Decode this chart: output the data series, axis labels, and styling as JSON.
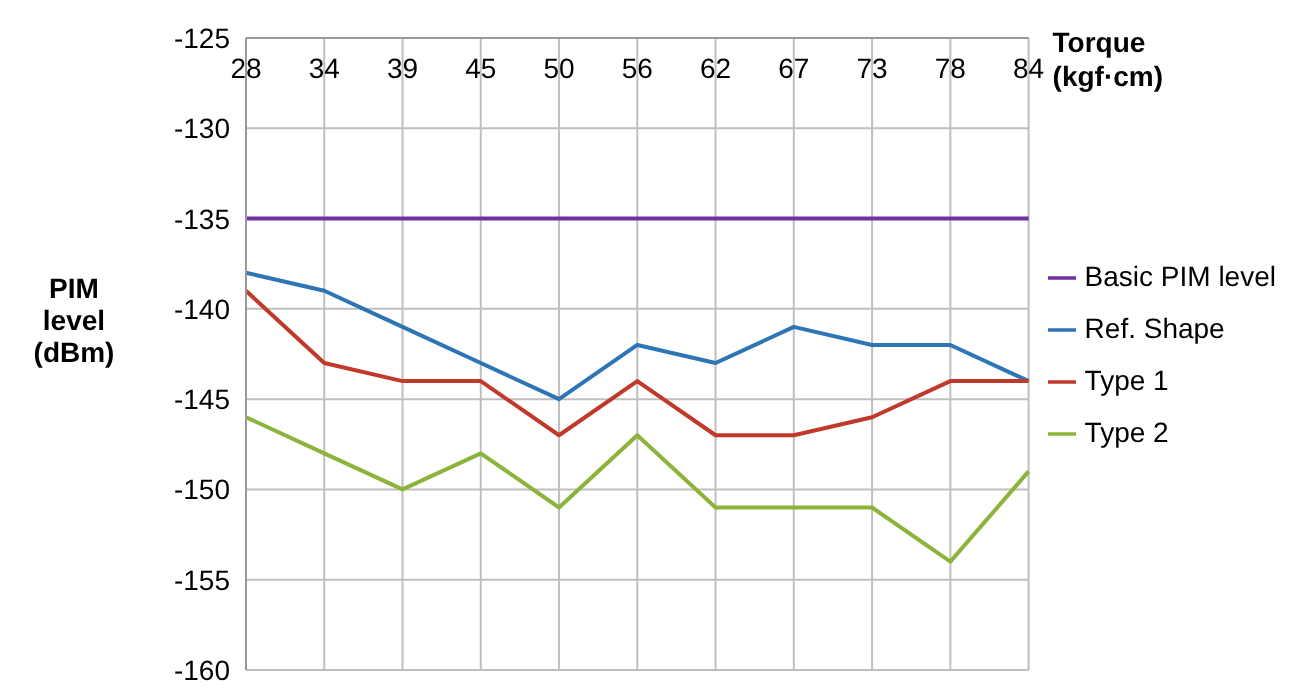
{
  "chart_data": {
    "type": "line",
    "xlabel": "Torque (kgf·cm)",
    "ylabel": "PIM level (dBm)",
    "categories": [
      "28",
      "34",
      "39",
      "45",
      "50",
      "56",
      "62",
      "67",
      "73",
      "78",
      "84"
    ],
    "series": [
      {
        "name": "Basic PIM level",
        "color": "#7030a0",
        "values": [
          -135,
          -135,
          -135,
          -135,
          -135,
          -135,
          -135,
          -135,
          -135,
          -135,
          -135
        ]
      },
      {
        "name": "Ref. Shape",
        "color": "#2e75b6",
        "values": [
          -138,
          -139,
          -141,
          -143,
          -145,
          -142,
          -143,
          -141,
          -142,
          -142,
          -144
        ]
      },
      {
        "name": "Type 1",
        "color": "#c0392b",
        "values": [
          -139,
          -143,
          -144,
          -144,
          -147,
          -144,
          -147,
          -147,
          -146,
          -144,
          -144
        ]
      },
      {
        "name": "Type 2",
        "color": "#8db33a",
        "values": [
          -146,
          -148,
          -150,
          -148,
          -151,
          -147,
          -151,
          -151,
          -151,
          -154,
          -149
        ]
      }
    ],
    "ylim": [
      -160,
      -125
    ],
    "yticks": [
      -160,
      -155,
      -150,
      -145,
      -140,
      -135,
      -130,
      -125
    ],
    "grid": true,
    "legend": "right",
    "marker": "none",
    "line_style": "solid"
  }
}
